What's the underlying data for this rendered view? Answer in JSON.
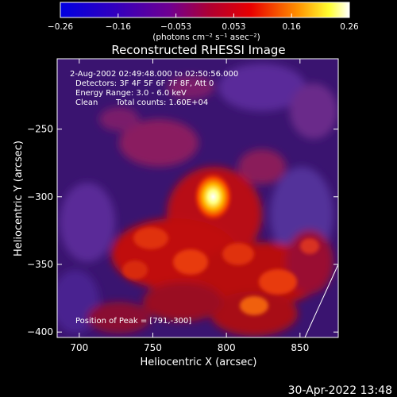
{
  "chart_data": {
    "type": "heatmap",
    "title": "Reconstructed RHESSI Image",
    "xlabel": "Heliocentric X (arcsec)",
    "ylabel": "Heliocentric Y (arcsec)",
    "xlim": [
      685,
      876
    ],
    "ylim": [
      -404,
      -198
    ],
    "x_ticks": [
      700,
      750,
      800,
      850
    ],
    "y_ticks": [
      -250,
      -300,
      -350,
      -400
    ],
    "colorbar": {
      "label": "(photons cm⁻² s⁻¹ asec⁻²)",
      "range": [
        -0.26,
        0.26
      ],
      "ticks": [
        "-0.26",
        "-0.16",
        "-0.053",
        "0.053",
        "0.16",
        "0.26"
      ]
    },
    "annotations": [
      "2-Aug-2002 02:49:48.000 to 02:50:56.000",
      "Detectors: 3F 4F 5F 6F 7F 8F, Att 0",
      "Energy Range: 3.0 - 6.0 keV",
      "Clean",
      "Total counts: 1.60E+04"
    ],
    "peak_label": "Position of Peak = [791,-300]",
    "peak": [
      791,
      -300
    ],
    "timestamp": "30-Apr-2022 13:48"
  }
}
